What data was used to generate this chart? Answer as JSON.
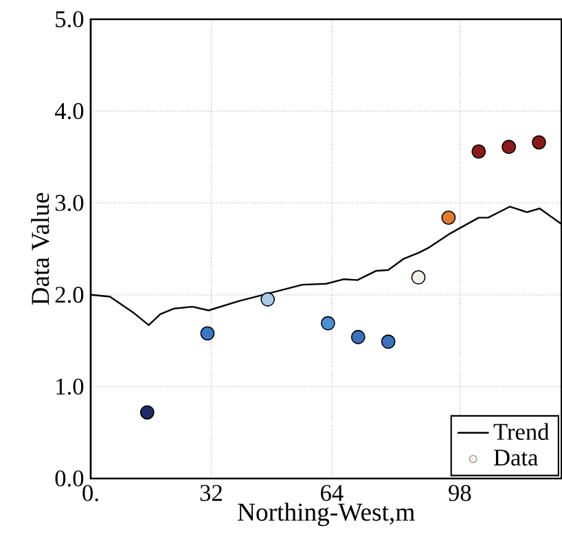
{
  "chart_data": {
    "type": "scatter",
    "xlabel": "Northing-West,m",
    "ylabel": "Data Value",
    "xlim": [
      0,
      125
    ],
    "ylim": [
      0,
      5
    ],
    "xticks": [
      {
        "value": 0,
        "label": "0."
      },
      32,
      64,
      98
    ],
    "yticks": [
      {
        "value": 0,
        "label": "0.0"
      },
      {
        "value": 1,
        "label": "1.0"
      },
      {
        "value": 2,
        "label": "2.0"
      },
      {
        "value": 3,
        "label": "3.0"
      },
      {
        "value": 4,
        "label": "4.0"
      },
      {
        "value": 5,
        "label": "5.0"
      }
    ],
    "grid": true,
    "legend": "bottom right",
    "series": [
      {
        "name": "Trend",
        "type": "line",
        "color": "#000000",
        "line_style": "solid",
        "marker": "none",
        "x": [
          0,
          5.1,
          11.2,
          15.4,
          18.5,
          22.1,
          27,
          31.3,
          39.2,
          47.7,
          56.2,
          62.5,
          67.2,
          70.8,
          75.7,
          79,
          83,
          87.2,
          89.6,
          95.1,
          103,
          105.5,
          111.3,
          115.8,
          119.2,
          125
        ],
        "values": [
          2.0,
          1.98,
          1.81,
          1.67,
          1.79,
          1.85,
          1.87,
          1.83,
          1.93,
          2.02,
          2.11,
          2.12,
          2.17,
          2.16,
          2.26,
          2.27,
          2.39,
          2.46,
          2.51,
          2.66,
          2.84,
          2.84,
          2.96,
          2.9,
          2.94,
          2.77
        ]
      },
      {
        "name": "Data",
        "marker": "circle",
        "color": "#f5f0ea",
        "x": [
          15,
          31,
          47,
          63,
          71,
          79,
          87,
          95,
          103,
          111,
          119
        ],
        "values": [
          0.72,
          1.58,
          1.95,
          1.69,
          1.54,
          1.49,
          2.19,
          2.84,
          3.56,
          3.61,
          3.66
        ],
        "colors": [
          "#1f2a6b",
          "#3a78c4",
          "#a9cbe8",
          "#4a8fd4",
          "#3a72c0",
          "#3a72c0",
          "#f5f0ea",
          "#e07b30",
          "#8b1a1a",
          "#8b1a1a",
          "#8b1a1a"
        ]
      }
    ]
  }
}
